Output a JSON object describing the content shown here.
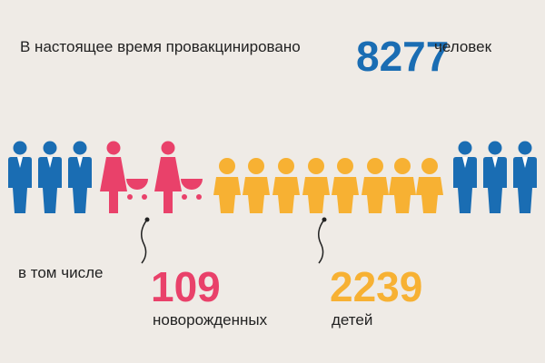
{
  "header": {
    "text": "В настоящее время провакцинировано",
    "count": 8277,
    "unit": "человек"
  },
  "details": {
    "intro": "в том числе",
    "items": [
      {
        "count": 109,
        "label": "новорожденных"
      },
      {
        "count": 2239,
        "label": "детей"
      }
    ]
  }
}
